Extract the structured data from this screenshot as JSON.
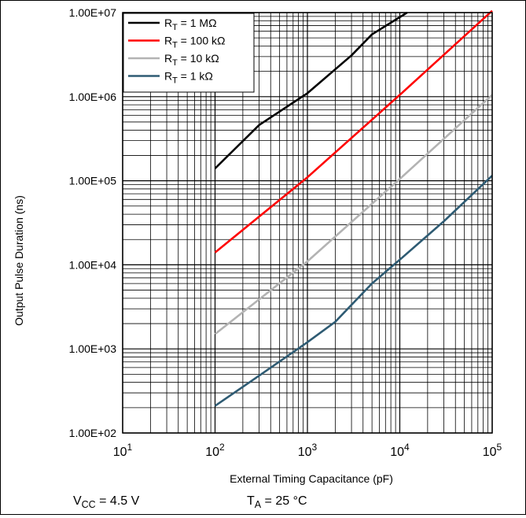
{
  "chart_data": {
    "type": "line",
    "x_scale": "log",
    "y_scale": "log",
    "xlim": [
      10,
      100000
    ],
    "ylim": [
      100,
      10000000
    ],
    "grid": true,
    "legend_position": "top-left",
    "xlabel": "External Timing Capacitance (pF)",
    "ylabel": "Output Pulse Duration (ns)",
    "x_ticks": [
      {
        "base": "10",
        "exp": "1",
        "value": 10
      },
      {
        "base": "10",
        "exp": "2",
        "value": 100
      },
      {
        "base": "10",
        "exp": "3",
        "value": 1000
      },
      {
        "base": "10",
        "exp": "4",
        "value": 10000
      },
      {
        "base": "10",
        "exp": "5",
        "value": 100000
      }
    ],
    "y_ticks": [
      {
        "label": "1.00E+02",
        "value": 100
      },
      {
        "label": "1.00E+03",
        "value": 1000
      },
      {
        "label": "1.00E+04",
        "value": 10000
      },
      {
        "label": "1.00E+05",
        "value": 100000
      },
      {
        "label": "1.00E+06",
        "value": 1000000
      },
      {
        "label": "1.00E+07",
        "value": 10000000
      }
    ],
    "series": [
      {
        "name": "R_T = 1 MΩ",
        "legend": {
          "pre": "R",
          "sub": "T",
          "post": " = 1 MΩ"
        },
        "color": "#000000",
        "points": [
          [
            100,
            140000
          ],
          [
            300,
            460000
          ],
          [
            1000,
            1100000
          ],
          [
            3000,
            3100000
          ],
          [
            5000,
            5500000
          ],
          [
            12000,
            10000000
          ]
        ]
      },
      {
        "name": "R_T = 100 kΩ",
        "legend": {
          "pre": "R",
          "sub": "T",
          "post": " = 100 kΩ"
        },
        "color": "#ff0000",
        "points": [
          [
            100,
            14000
          ],
          [
            1000,
            110000
          ],
          [
            10000,
            1050000
          ],
          [
            100000,
            10500000
          ]
        ]
      },
      {
        "name": "R_T = 10 kΩ",
        "legend": {
          "pre": "R",
          "sub": "T",
          "post": " = 10 kΩ"
        },
        "color": "#b3b3b3",
        "points": [
          [
            100,
            1500
          ],
          [
            1000,
            11000
          ],
          [
            10000,
            105000
          ],
          [
            100000,
            1050000
          ]
        ]
      },
      {
        "name": "R_T = 1 kΩ",
        "legend": {
          "pre": "R",
          "sub": "T",
          "post": " = 1 kΩ"
        },
        "color": "#2e5b73",
        "points": [
          [
            100,
            210
          ],
          [
            300,
            480
          ],
          [
            1000,
            1200
          ],
          [
            2000,
            2100
          ],
          [
            5000,
            6000
          ],
          [
            10000,
            11500
          ],
          [
            30000,
            33000
          ],
          [
            100000,
            115000
          ]
        ]
      }
    ],
    "annotations": [
      {
        "pre": "V",
        "sub": "CC",
        "post": " = 4.5 V"
      },
      {
        "pre": "T",
        "sub": "A",
        "post": " = 25 °C"
      }
    ]
  }
}
